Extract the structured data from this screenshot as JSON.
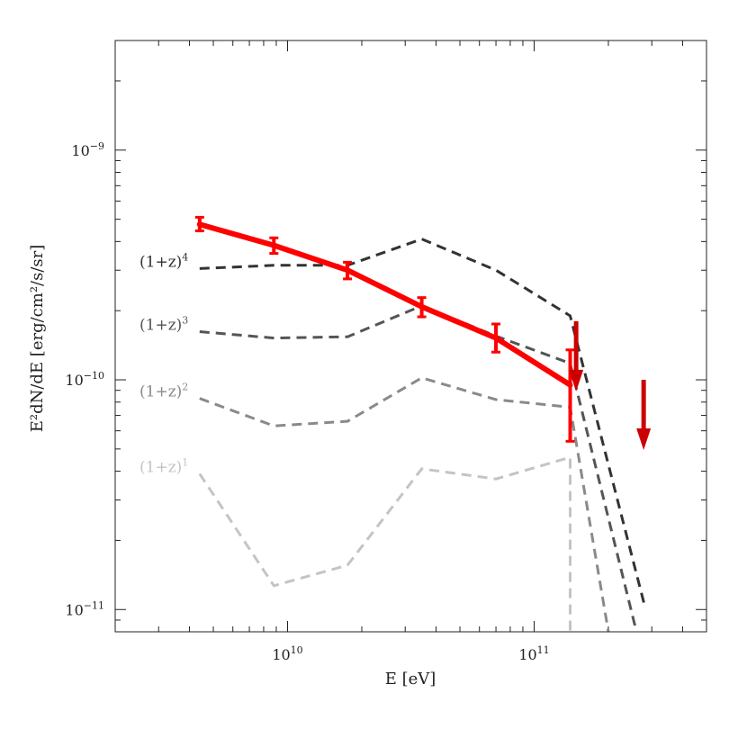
{
  "chart_data": {
    "type": "line",
    "xlabel": "E [eV]",
    "ylabel": "E²dN/dE [erg/cm²/s/sr]",
    "xscale": "log",
    "yscale": "log",
    "xlim": [
      2000000000.0,
      500000000000.0
    ],
    "ylim": [
      8e-12,
      3e-09
    ],
    "x_tick_labels": [
      {
        "base": "10",
        "exp": "10",
        "value": 10000000000.0
      },
      {
        "base": "10",
        "exp": "11",
        "value": 100000000000.0
      }
    ],
    "y_tick_labels": [
      {
        "base": "10",
        "exp": "−9",
        "value": 1e-09
      },
      {
        "base": "10",
        "exp": "−10",
        "value": 1e-10
      },
      {
        "base": "10",
        "exp": "−11",
        "value": 1e-11
      }
    ],
    "series": [
      {
        "name": "(1+z)⁴",
        "label_base": "(1+z)",
        "label_exp": "4",
        "color": "#333333",
        "style": "dashed",
        "x": [
          4400000000.0,
          8800000000.0,
          17500000000.0,
          35000000000.0,
          70000000000.0,
          140000000000.0,
          280000000000.0
        ],
        "y": [
          3.05e-10,
          3.15e-10,
          3.15e-10,
          4.1e-10,
          3e-10,
          1.9e-10,
          1.05e-11
        ]
      },
      {
        "name": "(1+z)³",
        "label_base": "(1+z)",
        "label_exp": "3",
        "color": "#555555",
        "style": "dashed",
        "x": [
          4400000000.0,
          8800000000.0,
          17500000000.0,
          35000000000.0,
          70000000000.0,
          140000000000.0,
          260000000000.0
        ],
        "y": [
          1.62e-10,
          1.52e-10,
          1.54e-10,
          2.1e-10,
          1.55e-10,
          1.18e-10,
          8e-12
        ]
      },
      {
        "name": "(1+z)²",
        "label_base": "(1+z)",
        "label_exp": "2",
        "color": "#8a8a8a",
        "style": "dashed",
        "x": [
          4400000000.0,
          8800000000.0,
          17500000000.0,
          35000000000.0,
          70000000000.0,
          140000000000.0,
          200000000000.0
        ],
        "y": [
          8.3e-11,
          6.3e-11,
          6.6e-11,
          1.02e-10,
          8.2e-11,
          7.6e-11,
          8e-12
        ]
      },
      {
        "name": "(1+z)¹",
        "label_base": "(1+z)",
        "label_exp": "1",
        "color": "#c4c4c4",
        "style": "dashed",
        "x": [
          4400000000.0,
          8800000000.0,
          17500000000.0,
          35000000000.0,
          70000000000.0,
          140000000000.0,
          140000000000.0
        ],
        "y": [
          3.9e-11,
          1.27e-11,
          1.56e-11,
          4.1e-11,
          3.7e-11,
          4.6e-11,
          8e-12
        ]
      }
    ],
    "measured": {
      "color": "#ff0000",
      "x": [
        4400000000.0,
        8800000000.0,
        17500000000.0,
        35000000000.0,
        70000000000.0,
        140000000000.0
      ],
      "y": [
        4.75e-10,
        3.85e-10,
        3e-10,
        2.08e-10,
        1.52e-10,
        9.5e-11
      ],
      "y_low": [
        4.45e-10,
        3.55e-10,
        2.75e-10,
        1.88e-10,
        1.32e-10,
        5.4e-11
      ],
      "y_high": [
        5.1e-10,
        4.15e-10,
        3.25e-10,
        2.28e-10,
        1.75e-10,
        1.35e-10
      ]
    },
    "upper_limits": {
      "color": "#cc0000",
      "points": [
        {
          "x": 148000000000.0,
          "y": 1.8e-10
        },
        {
          "x": 278000000000.0,
          "y": 1e-10
        }
      ]
    },
    "grid": false,
    "legend": "none"
  }
}
